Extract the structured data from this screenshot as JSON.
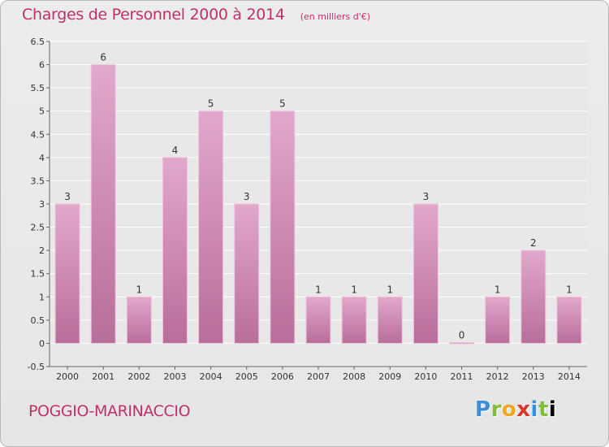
{
  "header": {
    "title": "Charges de Personnel 2000 à 2014",
    "subtitle": "(en milliers d'€)"
  },
  "footer": {
    "commune": "POGGIO-MARINACCIO",
    "logo_letters": [
      "P",
      "r",
      "o",
      "x",
      "i",
      "t",
      "i"
    ]
  },
  "colors": {
    "accent": "#c0306a",
    "bar_top": "#e2a8cc",
    "bar_bottom": "#b86e9a",
    "bar_border": "#f0c4dc"
  },
  "chart_data": {
    "type": "bar",
    "title": "Charges de Personnel 2000 à 2014",
    "subtitle": "(en milliers d'€)",
    "categories": [
      "2000",
      "2001",
      "2002",
      "2003",
      "2004",
      "2005",
      "2006",
      "2007",
      "2008",
      "2009",
      "2010",
      "2011",
      "2012",
      "2013",
      "2014"
    ],
    "values": [
      3,
      6,
      1,
      4,
      5,
      3,
      5,
      1,
      1,
      1,
      3,
      0,
      1,
      2,
      1
    ],
    "data_labels": [
      "3",
      "6",
      "1",
      "4",
      "5",
      "3",
      "5",
      "1",
      "1",
      "1",
      "3",
      "0",
      "1",
      "2",
      "1"
    ],
    "y_ticks": [
      "-0.5",
      "0",
      "0.5",
      "1",
      "1.5",
      "2",
      "2.5",
      "3",
      "3.5",
      "4",
      "4.5",
      "5",
      "5.5",
      "6",
      "6.5"
    ],
    "ylim": [
      -0.5,
      6.5
    ],
    "grid": true,
    "legend": "none"
  }
}
